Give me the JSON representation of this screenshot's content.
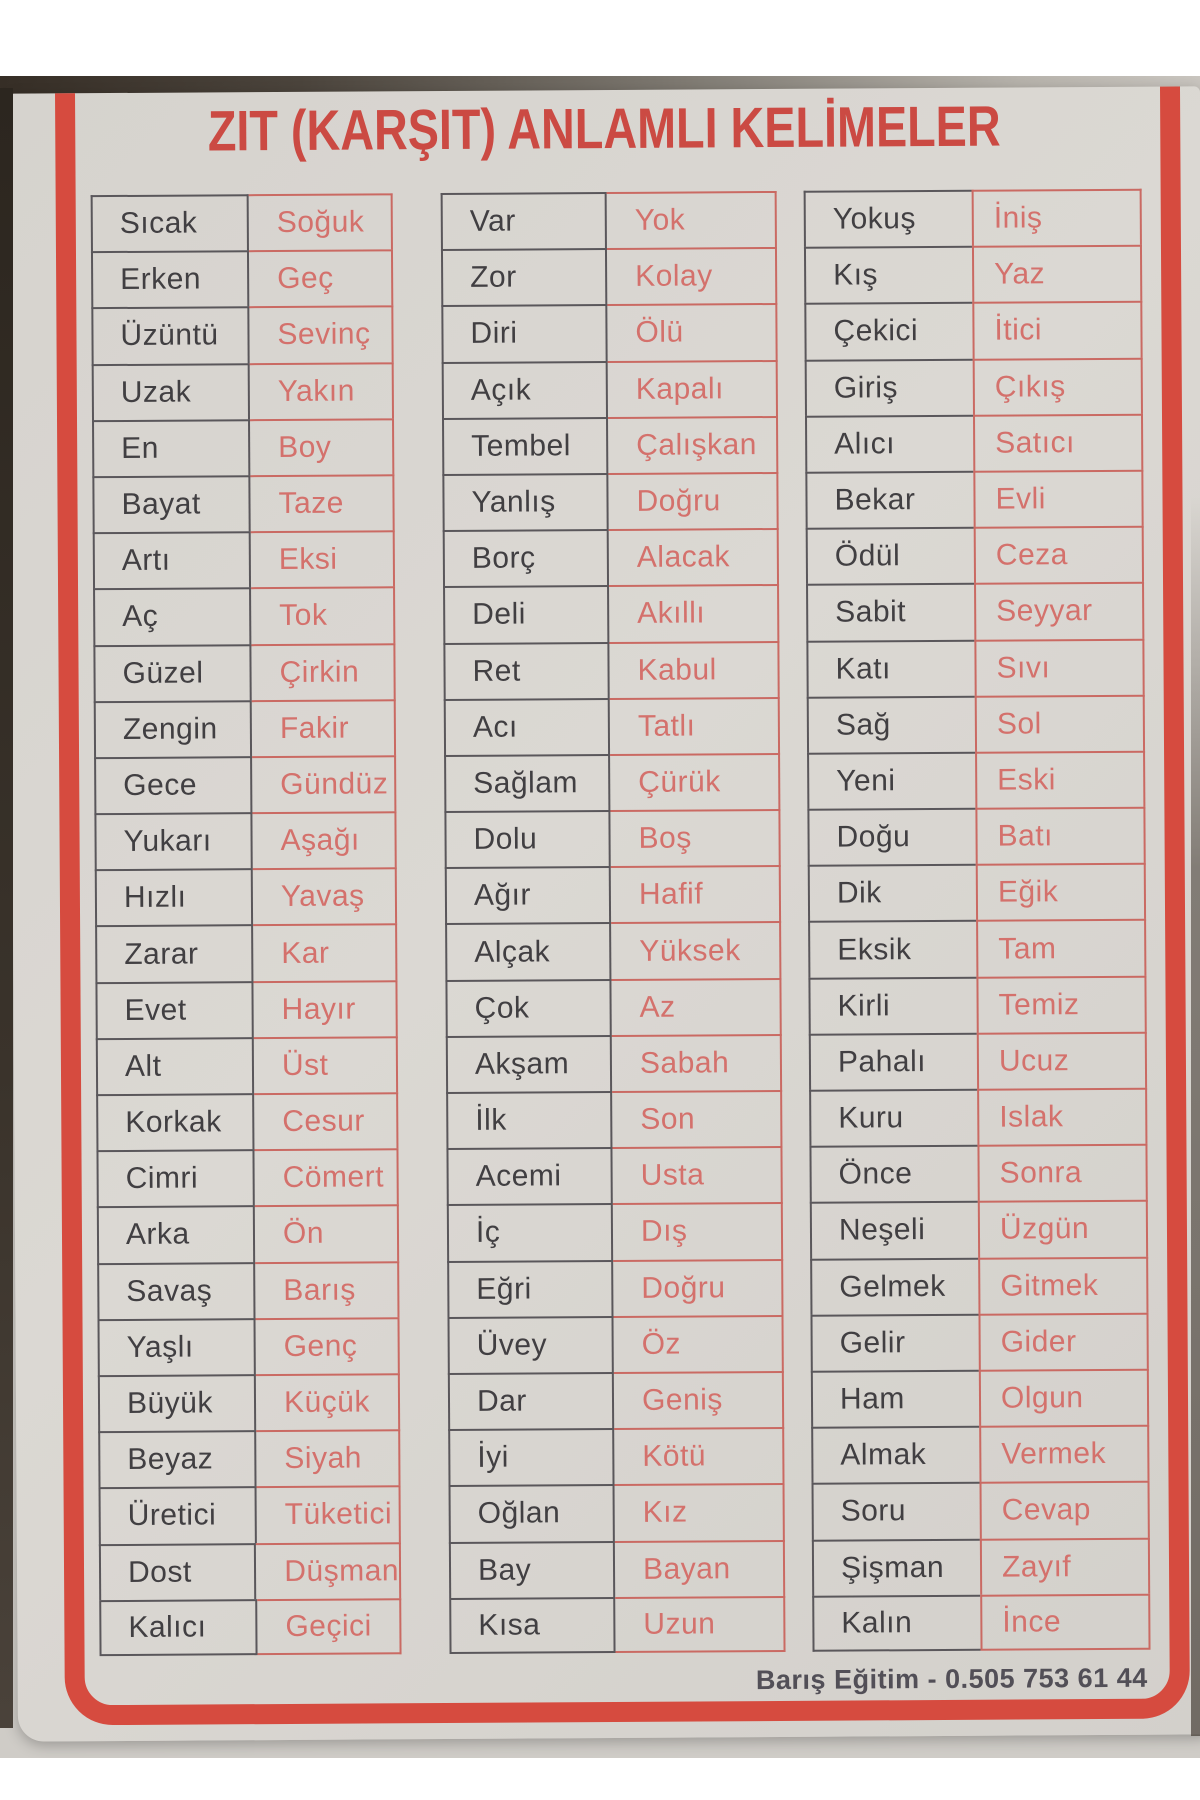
{
  "title": "ZIT (KARŞIT) ANLAMLI KELİMELER",
  "footer": "Barış Eğitim - 0.505 753 61 44",
  "colors": {
    "frame_red": "#d64b3f",
    "title_red": "#cb4a43",
    "antonym_red": "#d4716c",
    "word_dark": "#413f42",
    "poster_bg": "#d8d5d0"
  },
  "tables": [
    {
      "pairs": [
        [
          "Sıcak",
          "Soğuk"
        ],
        [
          "Erken",
          "Geç"
        ],
        [
          "Üzüntü",
          "Sevinç"
        ],
        [
          "Uzak",
          "Yakın"
        ],
        [
          "En",
          "Boy"
        ],
        [
          "Bayat",
          "Taze"
        ],
        [
          "Artı",
          "Eksi"
        ],
        [
          "Aç",
          "Tok"
        ],
        [
          "Güzel",
          "Çirkin"
        ],
        [
          "Zengin",
          "Fakir"
        ],
        [
          "Gece",
          "Gündüz"
        ],
        [
          "Yukarı",
          "Aşağı"
        ],
        [
          "Hızlı",
          "Yavaş"
        ],
        [
          "Zarar",
          "Kar"
        ],
        [
          "Evet",
          "Hayır"
        ],
        [
          "Alt",
          "Üst"
        ],
        [
          "Korkak",
          "Cesur"
        ],
        [
          "Cimri",
          "Cömert"
        ],
        [
          "Arka",
          "Ön"
        ],
        [
          "Savaş",
          "Barış"
        ],
        [
          "Yaşlı",
          "Genç"
        ],
        [
          "Büyük",
          "Küçük"
        ],
        [
          "Beyaz",
          "Siyah"
        ],
        [
          "Üretici",
          "Tüketici"
        ],
        [
          "Dost",
          "Düşman"
        ],
        [
          "Kalıcı",
          "Geçici"
        ]
      ]
    },
    {
      "pairs": [
        [
          "Var",
          "Yok"
        ],
        [
          "Zor",
          "Kolay"
        ],
        [
          "Diri",
          "Ölü"
        ],
        [
          "Açık",
          "Kapalı"
        ],
        [
          "Tembel",
          "Çalışkan"
        ],
        [
          "Yanlış",
          "Doğru"
        ],
        [
          "Borç",
          "Alacak"
        ],
        [
          "Deli",
          "Akıllı"
        ],
        [
          "Ret",
          "Kabul"
        ],
        [
          "Acı",
          "Tatlı"
        ],
        [
          "Sağlam",
          "Çürük"
        ],
        [
          "Dolu",
          "Boş"
        ],
        [
          "Ağır",
          "Hafif"
        ],
        [
          "Alçak",
          "Yüksek"
        ],
        [
          "Çok",
          "Az"
        ],
        [
          "Akşam",
          "Sabah"
        ],
        [
          "İlk",
          "Son"
        ],
        [
          "Acemi",
          "Usta"
        ],
        [
          "İç",
          "Dış"
        ],
        [
          "Eğri",
          "Doğru"
        ],
        [
          "Üvey",
          "Öz"
        ],
        [
          "Dar",
          "Geniş"
        ],
        [
          "İyi",
          "Kötü"
        ],
        [
          "Oğlan",
          "Kız"
        ],
        [
          "Bay",
          "Bayan"
        ],
        [
          "Kısa",
          "Uzun"
        ]
      ]
    },
    {
      "pairs": [
        [
          "Yokuş",
          "İniş"
        ],
        [
          "Kış",
          "Yaz"
        ],
        [
          "Çekici",
          "İtici"
        ],
        [
          "Giriş",
          "Çıkış"
        ],
        [
          "Alıcı",
          "Satıcı"
        ],
        [
          "Bekar",
          "Evli"
        ],
        [
          "Ödül",
          "Ceza"
        ],
        [
          "Sabit",
          "Seyyar"
        ],
        [
          "Katı",
          "Sıvı"
        ],
        [
          "Sağ",
          "Sol"
        ],
        [
          "Yeni",
          "Eski"
        ],
        [
          "Doğu",
          "Batı"
        ],
        [
          "Dik",
          "Eğik"
        ],
        [
          "Eksik",
          "Tam"
        ],
        [
          "Kirli",
          "Temiz"
        ],
        [
          "Pahalı",
          "Ucuz"
        ],
        [
          "Kuru",
          "Islak"
        ],
        [
          "Önce",
          "Sonra"
        ],
        [
          "Neşeli",
          "Üzgün"
        ],
        [
          "Gelmek",
          "Gitmek"
        ],
        [
          "Gelir",
          "Gider"
        ],
        [
          "Ham",
          "Olgun"
        ],
        [
          "Almak",
          "Vermek"
        ],
        [
          "Soru",
          "Cevap"
        ],
        [
          "Şişman",
          "Zayıf"
        ],
        [
          "Kalın",
          "İnce"
        ]
      ]
    }
  ]
}
